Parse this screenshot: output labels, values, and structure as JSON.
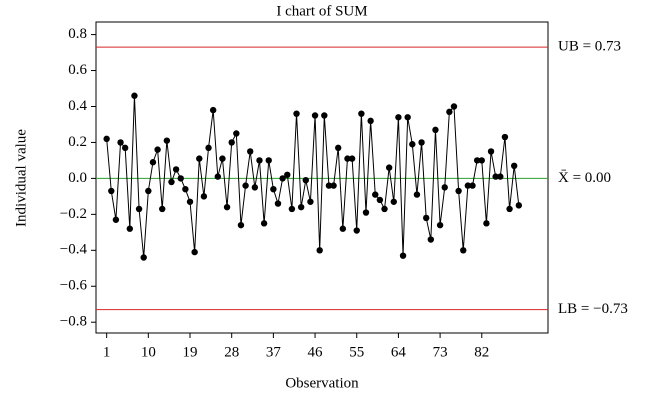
{
  "chart_data": {
    "type": "line",
    "title": "I chart of SUM",
    "x_label": "Observation",
    "y_label": "Individual value",
    "x": [
      1,
      2,
      3,
      4,
      5,
      6,
      7,
      8,
      9,
      10,
      11,
      12,
      13,
      14,
      15,
      16,
      17,
      18,
      19,
      20,
      21,
      22,
      23,
      24,
      25,
      26,
      27,
      28,
      29,
      30,
      31,
      32,
      33,
      34,
      35,
      36,
      37,
      38,
      39,
      40,
      41,
      42,
      43,
      44,
      45,
      46,
      47,
      48,
      49,
      50,
      51,
      52,
      53,
      54,
      55,
      56,
      57,
      58,
      59,
      60,
      61,
      62,
      63,
      64,
      65,
      66,
      67,
      68,
      69,
      70,
      71,
      72,
      73,
      74,
      75,
      76,
      77,
      78,
      79,
      80,
      81,
      82,
      83,
      84,
      85,
      86,
      87,
      88,
      89,
      90
    ],
    "series": [
      {
        "color": "#000000",
        "values": [
          0.22,
          -0.07,
          -0.23,
          0.2,
          0.17,
          -0.28,
          0.46,
          -0.17,
          -0.44,
          -0.07,
          0.09,
          0.16,
          -0.17,
          0.21,
          -0.02,
          0.05,
          0,
          -0.06,
          -0.13,
          -0.41,
          0.11,
          -0.1,
          0.17,
          0.38,
          0.01,
          0.11,
          -0.16,
          0.2,
          0.25,
          -0.26,
          -0.04,
          0.15,
          -0.05,
          0.1,
          -0.25,
          0.1,
          -0.06,
          -0.14,
          0,
          0.02,
          -0.17,
          0.36,
          -0.16,
          -0.01,
          -0.13,
          0.35,
          -0.4,
          0.35,
          -0.04,
          -0.04,
          0.17,
          -0.28,
          0.11,
          0.11,
          -0.29,
          0.36,
          -0.19,
          0.32,
          -0.09,
          -0.12,
          -0.17,
          0.06,
          -0.13,
          0.34,
          -0.43,
          0.34,
          0.19,
          -0.09,
          0.2,
          -0.22,
          -0.34,
          0.27,
          -0.26,
          -0.05,
          0.37,
          0.4,
          -0.07,
          -0.4,
          -0.04,
          -0.04,
          0.1,
          0.1,
          -0.25,
          0.15,
          0.01,
          0.01,
          0.23,
          -0.17,
          0.07,
          -0.15
        ]
      }
    ],
    "reference_lines": [
      {
        "label": "UB = 0.73",
        "value": 0.73,
        "color": "#d62728"
      },
      {
        "label": "X̄ = 0.00",
        "value": 0,
        "color": "#2ca02c"
      },
      {
        "label": "LB = −0.73",
        "value": -0.73,
        "color": "#d62728"
      }
    ],
    "xlim": [
      -1.3,
      96.3
    ],
    "xticks": [
      1,
      10,
      19,
      28,
      37,
      46,
      55,
      64,
      73,
      82
    ],
    "ylim": [
      -0.86,
      0.87
    ],
    "yticks": [
      {
        "value": 0.8,
        "label": "0.8"
      },
      {
        "value": 0.6,
        "label": "0.6"
      },
      {
        "value": 0.4,
        "label": "0.4"
      },
      {
        "value": 0.2,
        "label": "0.2"
      },
      {
        "value": 0,
        "label": "0.0"
      },
      {
        "value": -0.2,
        "label": "−0.2"
      },
      {
        "value": -0.4,
        "label": "−0.4"
      },
      {
        "value": -0.6,
        "label": "−0.6"
      },
      {
        "value": -0.8,
        "label": "−0.8"
      }
    ]
  }
}
